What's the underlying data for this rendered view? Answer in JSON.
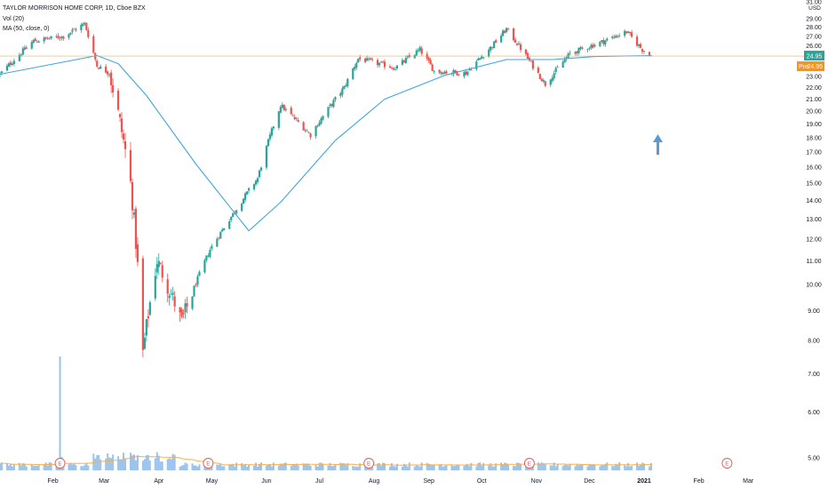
{
  "header": {
    "symbol_line": "TAYLOR MORRISON HOME CORP, 1D, Cboe BZX",
    "volume_indicator": "Vol (20)",
    "ma_indicator": "MA (50, close, 0)"
  },
  "price_axis": {
    "currency": "USD",
    "ticks": [
      "31.00",
      "29.00",
      "28.00",
      "27.00",
      "26.00",
      "25.00",
      "24.00",
      "23.00",
      "22.00",
      "21.00",
      "20.00",
      "19.00",
      "18.00",
      "17.00",
      "16.00",
      "15.00",
      "14.00",
      "13.00",
      "12.00",
      "11.00",
      "10.00",
      "9.00",
      "8.00",
      "7.00",
      "6.00",
      "5.00"
    ],
    "last_price_label": "24.95",
    "premarket_tag": "Pre",
    "premarket_price_label": "24.95"
  },
  "time_axis": {
    "ticks": [
      "Feb",
      "Mar",
      "Apr",
      "May",
      "Jun",
      "Jul",
      "Aug",
      "Sep",
      "Oct",
      "Nov",
      "Dec",
      "2021",
      "Feb",
      "Mar"
    ]
  },
  "earnings_markers": [
    {
      "label": "E"
    },
    {
      "label": "E"
    },
    {
      "label": "E"
    },
    {
      "label": "E"
    },
    {
      "label": "E"
    }
  ],
  "colors": {
    "up": "#26a69a",
    "down": "#ef5350",
    "ma_line": "#3fa7e0",
    "volume": "#8ab8ea",
    "volume_ma": "#f5b04c",
    "last_price_line": "#f5a04c",
    "arrow": "#5b9bd0",
    "text": "#131722"
  },
  "chart_data": {
    "type": "candlestick",
    "series_start_date": "2020-01-02",
    "x_range": [
      "2020-01-02",
      "2021-03-16"
    ],
    "y_range": [
      5.0,
      31.0
    ],
    "y_scale": "log",
    "anchors": [
      {
        "date": "2020-01-02",
        "close": 23.2
      },
      {
        "date": "2020-01-21",
        "close": 26.5
      },
      {
        "date": "2020-02-07",
        "close": 27.0
      },
      {
        "date": "2020-02-19",
        "close": 28.4
      },
      {
        "date": "2020-02-26",
        "close": 24.0
      },
      {
        "date": "2020-03-04",
        "close": 23.3
      },
      {
        "date": "2020-03-16",
        "close": 15.0
      },
      {
        "date": "2020-03-23",
        "close": 7.6
      },
      {
        "date": "2020-03-31",
        "close": 11.0
      },
      {
        "date": "2020-04-14",
        "close": 8.6
      },
      {
        "date": "2020-04-30",
        "close": 11.5
      },
      {
        "date": "2020-05-14",
        "close": 13.4
      },
      {
        "date": "2020-05-27",
        "close": 15.3
      },
      {
        "date": "2020-06-09",
        "close": 20.5
      },
      {
        "date": "2020-06-26",
        "close": 18.2
      },
      {
        "date": "2020-07-15",
        "close": 22.0
      },
      {
        "date": "2020-07-23",
        "close": 24.7
      },
      {
        "date": "2020-08-13",
        "close": 23.8
      },
      {
        "date": "2020-08-27",
        "close": 25.6
      },
      {
        "date": "2020-09-04",
        "close": 23.5
      },
      {
        "date": "2020-09-22",
        "close": 23.3
      },
      {
        "date": "2020-10-07",
        "close": 26.0
      },
      {
        "date": "2020-10-15",
        "close": 27.8
      },
      {
        "date": "2020-10-29",
        "close": 24.2
      },
      {
        "date": "2020-11-06",
        "close": 22.3
      },
      {
        "date": "2020-11-20",
        "close": 25.2
      },
      {
        "date": "2020-12-08",
        "close": 26.4
      },
      {
        "date": "2020-12-22",
        "close": 27.5
      },
      {
        "date": "2020-12-31",
        "close": 25.6
      },
      {
        "date": "2021-01-05",
        "close": 24.95
      }
    ],
    "moving_average": {
      "name": "MA (50, close, 0)",
      "points": [
        {
          "date": "2020-01-02",
          "value": 23.2
        },
        {
          "date": "2020-02-26",
          "value": 25.0
        },
        {
          "date": "2020-03-09",
          "value": 24.2
        },
        {
          "date": "2020-03-25",
          "value": 21.3
        },
        {
          "date": "2020-04-22",
          "value": 16.2
        },
        {
          "date": "2020-05-22",
          "value": 12.4
        },
        {
          "date": "2020-06-09",
          "value": 13.9
        },
        {
          "date": "2020-07-10",
          "value": 17.8
        },
        {
          "date": "2020-08-07",
          "value": 21.0
        },
        {
          "date": "2020-09-10",
          "value": 23.1
        },
        {
          "date": "2020-10-15",
          "value": 24.6
        },
        {
          "date": "2020-11-10",
          "value": 24.6
        },
        {
          "date": "2020-12-04",
          "value": 24.9
        },
        {
          "date": "2021-01-05",
          "value": 25.0
        }
      ]
    },
    "volume_spike_date": "2020-02-05",
    "earnings_dates": [
      "2020-02-05",
      "2020-04-29",
      "2020-07-29",
      "2020-10-28",
      "2021-02-17"
    ]
  }
}
